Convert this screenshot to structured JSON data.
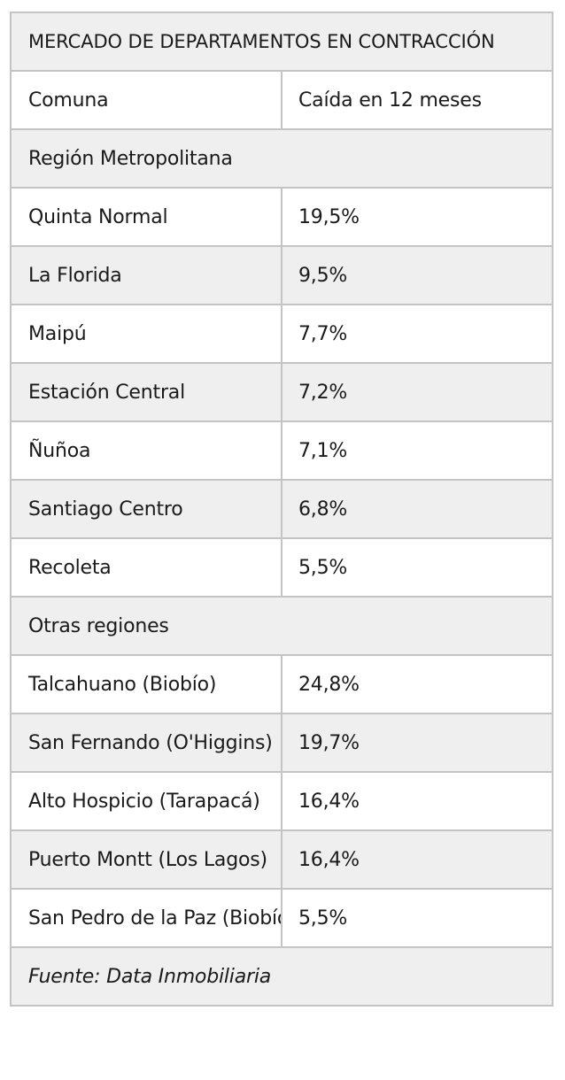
{
  "chart_data": {
    "type": "table",
    "title": "MERCADO DE DEPARTAMENTOS EN CONTRACCIÓN",
    "columns": [
      "Comuna",
      "Caída en 12 meses"
    ],
    "groups": [
      {
        "name": "Región Metropolitana",
        "rows": [
          {
            "comuna": "Quinta Normal",
            "caida": "19,5%",
            "value": 19.5
          },
          {
            "comuna": "La Florida",
            "caida": "9,5%",
            "value": 9.5
          },
          {
            "comuna": "Maipú",
            "caida": "7,7%",
            "value": 7.7
          },
          {
            "comuna": "Estación Central",
            "caida": "7,2%",
            "value": 7.2
          },
          {
            "comuna": "Ñuñoa",
            "caida": "7,1%",
            "value": 7.1
          },
          {
            "comuna": "Santiago Centro",
            "caida": "6,8%",
            "value": 6.8
          },
          {
            "comuna": "Recoleta",
            "caida": "5,5%",
            "value": 5.5
          }
        ]
      },
      {
        "name": "Otras regiones",
        "rows": [
          {
            "comuna": "Talcahuano (Biobío)",
            "caida": "24,8%",
            "value": 24.8
          },
          {
            "comuna": "San Fernando (O'Higgins)",
            "caida": "19,7%",
            "value": 19.7
          },
          {
            "comuna": "Alto Hospicio (Tarapacá)",
            "caida": "16,4%",
            "value": 16.4
          },
          {
            "comuna": "Puerto Montt (Los Lagos)",
            "caida": "16,4%",
            "value": 16.4
          },
          {
            "comuna": "San Pedro de la Paz (Biobío)",
            "caida": "5,5%",
            "value": 5.5
          }
        ]
      }
    ],
    "source": "Fuente: Data Inmobiliaria",
    "colors": {
      "border": "#c4c4c4",
      "stripe": "#efefef",
      "background": "#ffffff",
      "text": "#1a1a1a"
    }
  }
}
